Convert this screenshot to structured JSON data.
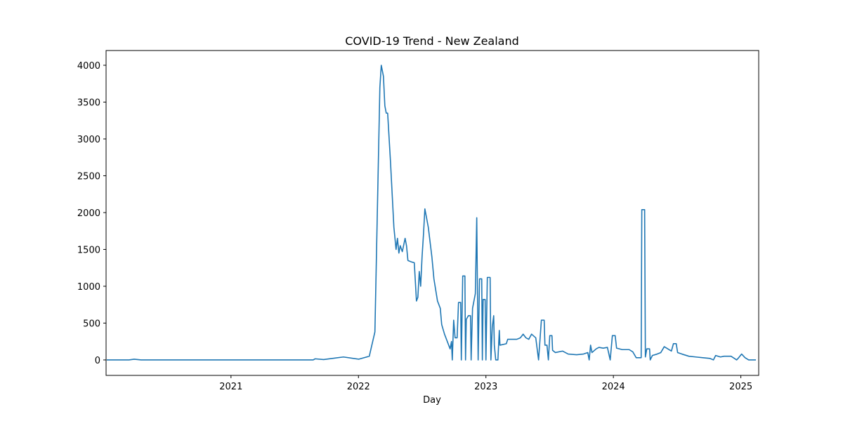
{
  "chart_data": {
    "type": "line",
    "title": "COVID-19 Trend - New Zealand",
    "xlabel": "Day",
    "color": "#1f77b4",
    "x": [
      2020.025,
      2020.2,
      2020.24,
      2020.295,
      2021.645,
      2021.66,
      2021.727,
      2021.882,
      2022.003,
      2022.085,
      2022.129,
      2022.168,
      2022.179,
      2022.196,
      2022.207,
      2022.218,
      2022.229,
      2022.251,
      2022.278,
      2022.295,
      2022.306,
      2022.317,
      2022.328,
      2022.344,
      2022.366,
      2022.377,
      2022.388,
      2022.416,
      2022.438,
      2022.455,
      2022.466,
      2022.477,
      2022.488,
      2022.499,
      2022.51,
      2022.521,
      2022.532,
      2022.548,
      2022.576,
      2022.592,
      2022.62,
      2022.642,
      2022.653,
      2022.675,
      2022.697,
      2022.719,
      2022.73,
      2022.736,
      2022.747,
      2022.758,
      2022.774,
      2022.785,
      2022.802,
      2022.807,
      2022.818,
      2022.835,
      2022.84,
      2022.846,
      2022.862,
      2022.879,
      2022.884,
      2022.895,
      2022.917,
      2022.928,
      2022.939,
      2022.95,
      2022.967,
      2022.972,
      2022.978,
      2022.994,
      2023.0,
      2023.011,
      2023.033,
      2023.039,
      2023.05,
      2023.061,
      2023.066,
      2023.077,
      2023.094,
      2023.105,
      2023.11,
      2023.16,
      2023.171,
      2023.242,
      2023.27,
      2023.292,
      2023.314,
      2023.336,
      2023.358,
      2023.391,
      2023.413,
      2023.435,
      2023.457,
      2023.463,
      2023.479,
      2023.49,
      2023.501,
      2023.518,
      2023.523,
      2023.545,
      2023.601,
      2023.645,
      2023.711,
      2023.766,
      2023.799,
      2023.81,
      2023.821,
      2023.832,
      2023.865,
      2023.887,
      2023.92,
      2023.953,
      2023.975,
      2023.992,
      2024.014,
      2024.025,
      2024.069,
      2024.124,
      2024.152,
      2024.179,
      2024.218,
      2024.223,
      2024.245,
      2024.251,
      2024.262,
      2024.284,
      2024.289,
      2024.306,
      2024.344,
      2024.372,
      2024.399,
      2024.427,
      2024.455,
      2024.471,
      2024.493,
      2024.504,
      2024.537,
      2024.592,
      2024.647,
      2024.702,
      2024.758,
      2024.785,
      2024.802,
      2024.84,
      2024.868,
      2024.923,
      2024.967,
      2024.978,
      2025.006,
      2025.033,
      2025.061,
      2025.118
    ],
    "values": [
      0,
      0,
      10,
      0,
      0,
      15,
      5,
      40,
      10,
      50,
      380,
      3700,
      4000,
      3850,
      3450,
      3350,
      3350,
      2700,
      1800,
      1500,
      1650,
      1450,
      1550,
      1470,
      1650,
      1550,
      1350,
      1330,
      1320,
      800,
      850,
      1200,
      1000,
      1400,
      1700,
      2050,
      1950,
      1800,
      1400,
      1100,
      800,
      700,
      480,
      350,
      250,
      150,
      250,
      0,
      540,
      300,
      300,
      780,
      780,
      0,
      1140,
      1140,
      0,
      550,
      600,
      600,
      0,
      700,
      900,
      1930,
      0,
      1100,
      1100,
      0,
      820,
      820,
      0,
      1120,
      1120,
      0,
      450,
      600,
      200,
      0,
      0,
      400,
      200,
      220,
      280,
      280,
      300,
      350,
      300,
      280,
      350,
      300,
      0,
      540,
      540,
      200,
      200,
      0,
      330,
      330,
      130,
      100,
      120,
      80,
      70,
      80,
      100,
      0,
      200,
      100,
      150,
      170,
      160,
      170,
      0,
      330,
      330,
      160,
      140,
      140,
      110,
      30,
      30,
      2040,
      2040,
      40,
      150,
      150,
      0,
      60,
      80,
      100,
      180,
      150,
      120,
      220,
      220,
      100,
      80,
      50,
      40,
      30,
      20,
      0,
      60,
      40,
      50,
      50,
      0,
      20,
      80,
      30,
      0,
      0
    ],
    "xlim": [
      2020.02,
      2025.14
    ],
    "xticks": [
      2021,
      2022,
      2023,
      2024,
      2025
    ],
    "ylim": [
      -210,
      4200
    ],
    "yticks": [
      0,
      500,
      1000,
      1500,
      2000,
      2500,
      3000,
      3500,
      4000
    ]
  }
}
